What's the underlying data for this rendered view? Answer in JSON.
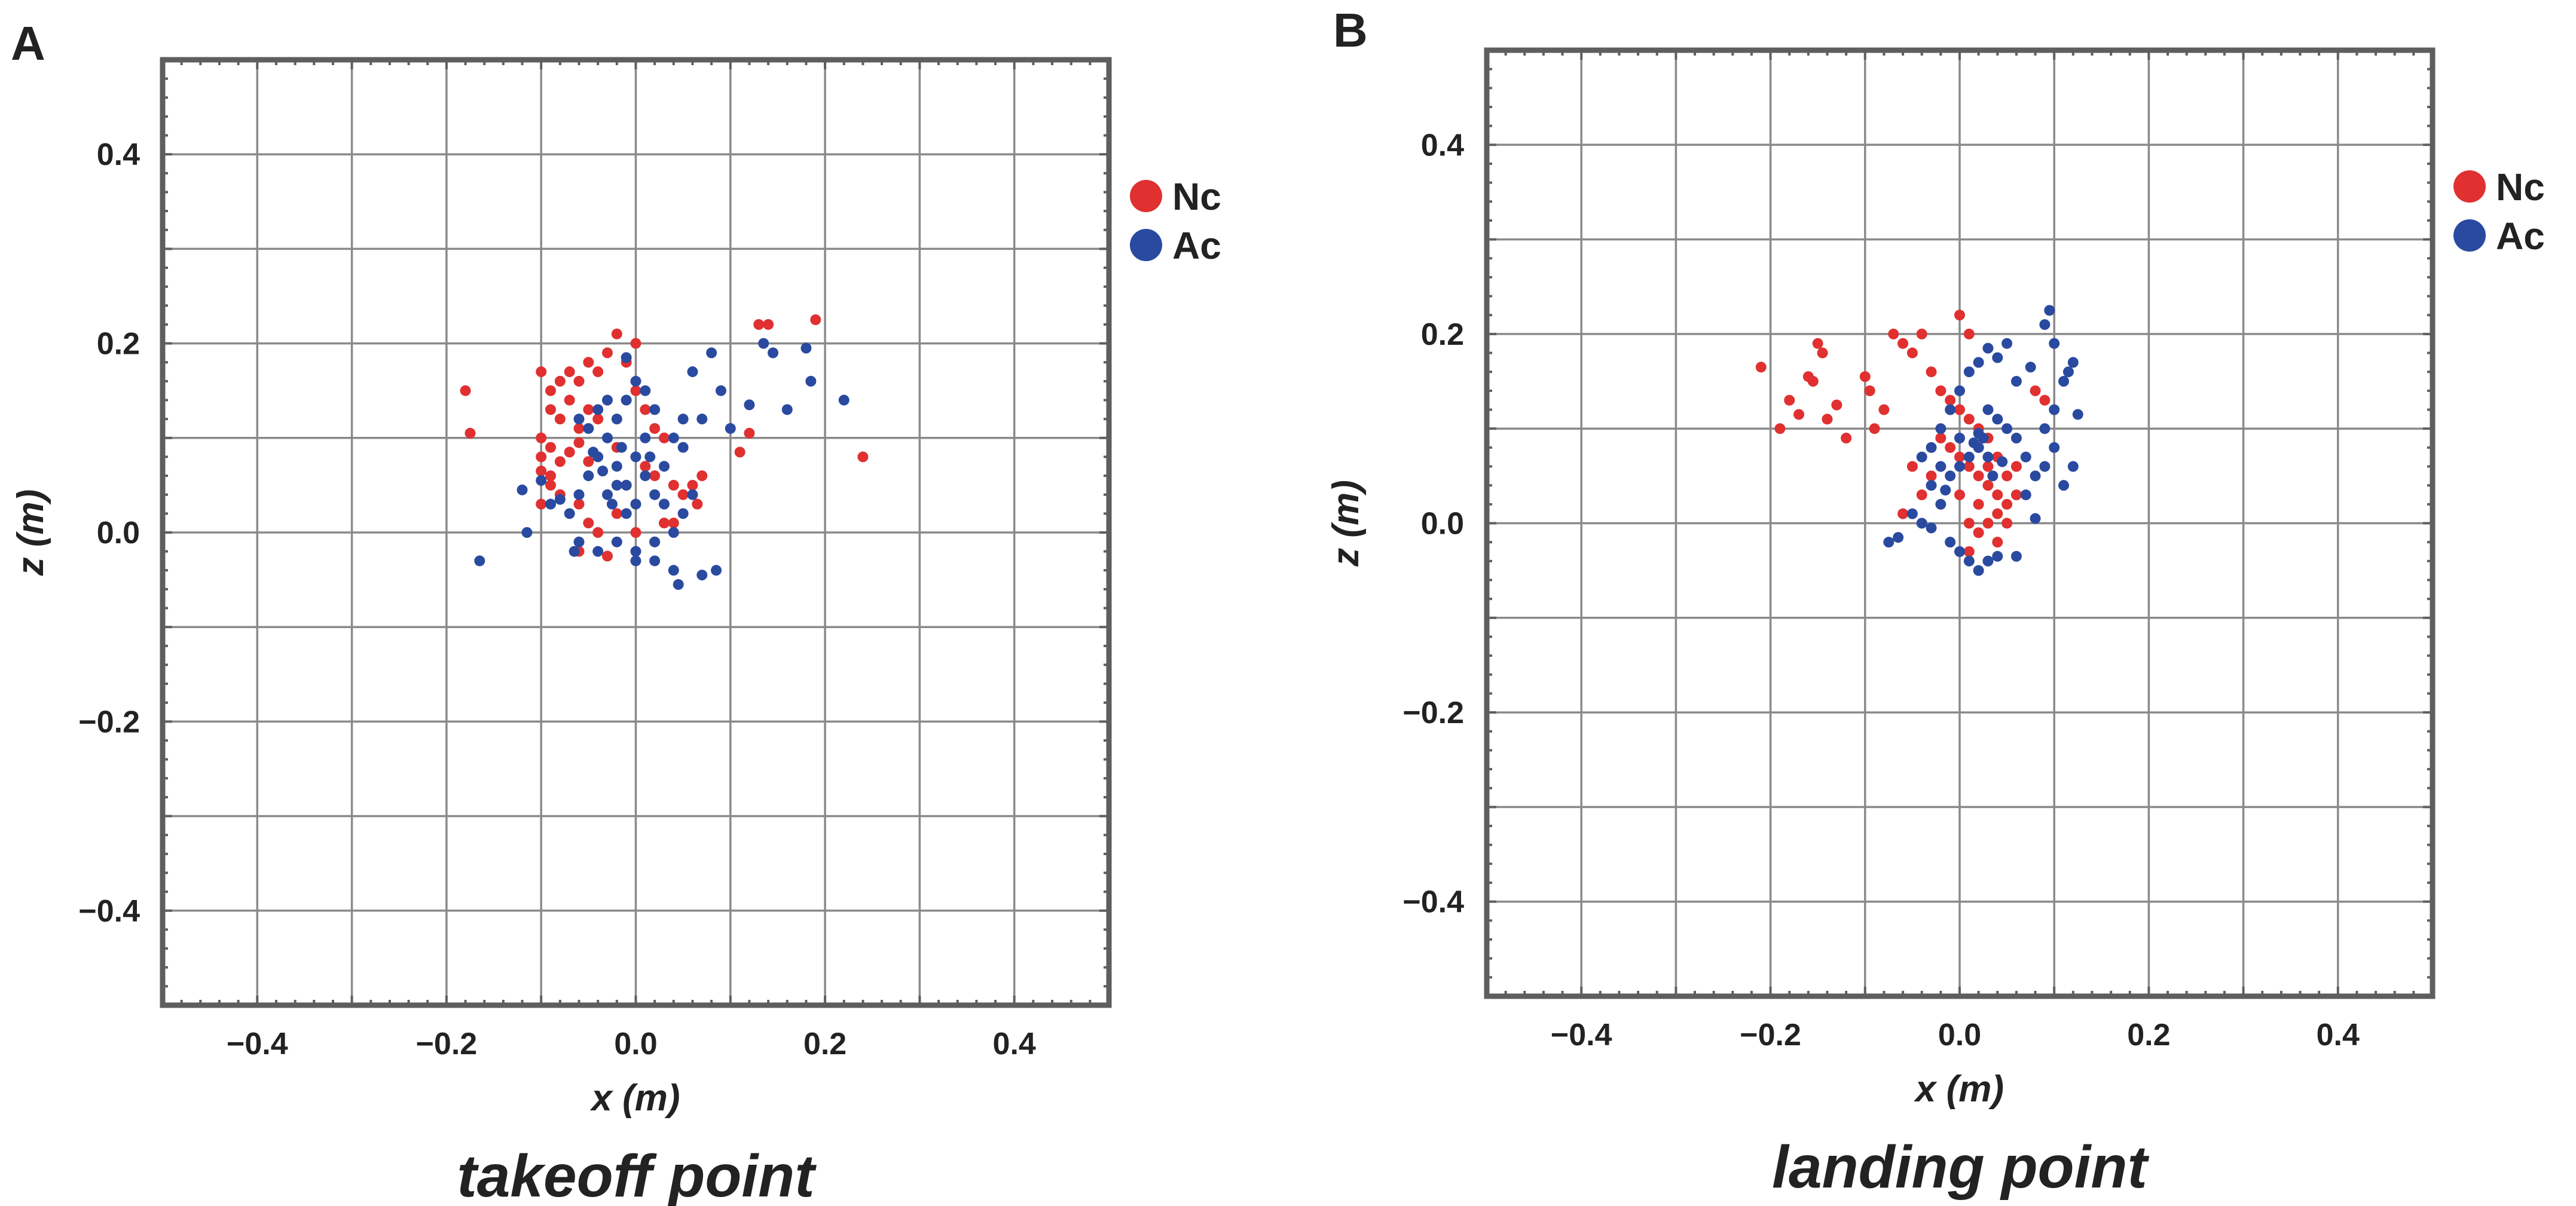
{
  "colors": {
    "Nc": "#e03030",
    "Ac": "#2a4aa0"
  },
  "chart_data": [
    {
      "panel_label": "A",
      "type": "scatter",
      "title": "takeoff point",
      "xlabel": "x (m)",
      "ylabel": "z (m)",
      "xlim": [
        -0.5,
        0.5
      ],
      "ylim": [
        -0.5,
        0.5
      ],
      "grid": true,
      "legend_position": "right",
      "xticks": [
        {
          "value": -0.4,
          "label": "−0.4"
        },
        {
          "value": -0.2,
          "label": "−0.2"
        },
        {
          "value": 0.0,
          "label": "0.0"
        },
        {
          "value": 0.2,
          "label": "0.2"
        },
        {
          "value": 0.4,
          "label": "0.4"
        }
      ],
      "yticks": [
        {
          "value": 0.4,
          "label": "0.4"
        },
        {
          "value": 0.2,
          "label": "0.2"
        },
        {
          "value": 0.0,
          "label": "0.0"
        },
        {
          "value": -0.2,
          "label": "−0.2"
        },
        {
          "value": -0.4,
          "label": "−0.4"
        }
      ],
      "series": [
        {
          "name": "Nc",
          "color": "#e03030",
          "points": [
            [
              -0.18,
              0.15
            ],
            [
              -0.175,
              0.105
            ],
            [
              -0.1,
              0.17
            ],
            [
              -0.09,
              0.15
            ],
            [
              -0.08,
              0.16
            ],
            [
              -0.07,
              0.17
            ],
            [
              -0.06,
              0.16
            ],
            [
              -0.05,
              0.18
            ],
            [
              -0.04,
              0.17
            ],
            [
              -0.03,
              0.19
            ],
            [
              -0.02,
              0.21
            ],
            [
              -0.01,
              0.18
            ],
            [
              0.0,
              0.2
            ],
            [
              -0.09,
              0.13
            ],
            [
              -0.08,
              0.12
            ],
            [
              -0.07,
              0.14
            ],
            [
              -0.06,
              0.11
            ],
            [
              -0.05,
              0.13
            ],
            [
              -0.04,
              0.12
            ],
            [
              -0.1,
              0.1
            ],
            [
              -0.09,
              0.09
            ],
            [
              -0.1,
              0.08
            ],
            [
              -0.1,
              0.065
            ],
            [
              -0.09,
              0.05
            ],
            [
              -0.08,
              0.075
            ],
            [
              -0.07,
              0.085
            ],
            [
              -0.06,
              0.095
            ],
            [
              -0.05,
              0.075
            ],
            [
              -0.08,
              0.04
            ],
            [
              -0.06,
              0.03
            ],
            [
              -0.05,
              0.01
            ],
            [
              -0.06,
              -0.02
            ],
            [
              -0.04,
              0.0
            ],
            [
              -0.03,
              -0.025
            ],
            [
              -0.02,
              0.02
            ],
            [
              0.0,
              0.0
            ],
            [
              0.01,
              0.07
            ],
            [
              0.02,
              0.06
            ],
            [
              0.03,
              0.1
            ],
            [
              0.04,
              0.05
            ],
            [
              0.05,
              0.04
            ],
            [
              0.06,
              0.05
            ],
            [
              0.07,
              0.06
            ],
            [
              0.065,
              0.03
            ],
            [
              0.03,
              0.01
            ],
            [
              0.04,
              0.01
            ],
            [
              0.01,
              0.13
            ],
            [
              0.02,
              0.11
            ],
            [
              0.0,
              0.15
            ],
            [
              -0.02,
              0.09
            ],
            [
              -0.01,
              0.05
            ],
            [
              -0.1,
              0.03
            ],
            [
              -0.09,
              0.06
            ],
            [
              0.02,
              -0.01
            ],
            [
              0.12,
              0.105
            ],
            [
              0.11,
              0.085
            ],
            [
              0.13,
              0.22
            ],
            [
              0.14,
              0.22
            ],
            [
              0.19,
              0.225
            ],
            [
              0.24,
              0.08
            ]
          ]
        },
        {
          "name": "Ac",
          "color": "#2a4aa0",
          "points": [
            [
              -0.165,
              -0.03
            ],
            [
              -0.12,
              0.045
            ],
            [
              -0.115,
              0.0
            ],
            [
              -0.1,
              0.055
            ],
            [
              -0.09,
              0.03
            ],
            [
              -0.08,
              0.035
            ],
            [
              -0.07,
              0.02
            ],
            [
              -0.06,
              0.04
            ],
            [
              -0.05,
              0.06
            ],
            [
              -0.04,
              0.08
            ],
            [
              -0.03,
              0.1
            ],
            [
              -0.02,
              0.12
            ],
            [
              -0.01,
              0.14
            ],
            [
              0.0,
              0.16
            ],
            [
              0.01,
              0.15
            ],
            [
              0.02,
              0.13
            ],
            [
              -0.05,
              0.11
            ],
            [
              -0.04,
              0.13
            ],
            [
              -0.03,
              0.14
            ],
            [
              -0.02,
              0.07
            ],
            [
              -0.01,
              0.05
            ],
            [
              0.0,
              0.03
            ],
            [
              -0.03,
              0.04
            ],
            [
              -0.02,
              0.05
            ],
            [
              -0.01,
              0.02
            ],
            [
              0.0,
              0.08
            ],
            [
              0.01,
              0.06
            ],
            [
              0.02,
              0.04
            ],
            [
              0.03,
              0.07
            ],
            [
              0.04,
              0.1
            ],
            [
              0.05,
              0.12
            ],
            [
              0.06,
              0.17
            ],
            [
              0.08,
              0.19
            ],
            [
              0.07,
              0.12
            ],
            [
              0.05,
              0.09
            ],
            [
              0.03,
              0.03
            ],
            [
              0.04,
              0.0
            ],
            [
              0.02,
              -0.01
            ],
            [
              0.0,
              -0.02
            ],
            [
              -0.02,
              -0.01
            ],
            [
              -0.04,
              -0.02
            ],
            [
              -0.06,
              -0.01
            ],
            [
              -0.065,
              -0.02
            ],
            [
              0.0,
              -0.03
            ],
            [
              0.02,
              -0.03
            ],
            [
              0.04,
              -0.04
            ],
            [
              0.045,
              -0.055
            ],
            [
              0.07,
              -0.045
            ],
            [
              0.085,
              -0.04
            ],
            [
              0.05,
              0.02
            ],
            [
              0.06,
              0.04
            ],
            [
              -0.01,
              0.185
            ],
            [
              0.09,
              0.15
            ],
            [
              0.1,
              0.11
            ],
            [
              0.12,
              0.135
            ],
            [
              0.135,
              0.2
            ],
            [
              0.145,
              0.19
            ],
            [
              0.16,
              0.13
            ],
            [
              0.18,
              0.195
            ],
            [
              0.185,
              0.16
            ],
            [
              0.22,
              0.14
            ],
            [
              -0.035,
              0.065
            ],
            [
              -0.045,
              0.085
            ],
            [
              -0.025,
              0.03
            ],
            [
              0.01,
              0.1
            ],
            [
              -0.06,
              0.12
            ],
            [
              0.015,
              0.08
            ],
            [
              -0.015,
              0.09
            ]
          ]
        }
      ]
    },
    {
      "panel_label": "B",
      "type": "scatter",
      "title": "landing point",
      "xlabel": "x (m)",
      "ylabel": "z (m)",
      "xlim": [
        -0.5,
        0.5
      ],
      "ylim": [
        -0.5,
        0.5
      ],
      "grid": true,
      "legend_position": "right",
      "xticks": [
        {
          "value": -0.4,
          "label": "−0.4"
        },
        {
          "value": -0.2,
          "label": "−0.2"
        },
        {
          "value": 0.0,
          "label": "0.0"
        },
        {
          "value": 0.2,
          "label": "0.2"
        },
        {
          "value": 0.4,
          "label": "0.4"
        }
      ],
      "yticks": [
        {
          "value": 0.4,
          "label": "0.4"
        },
        {
          "value": 0.2,
          "label": "0.2"
        },
        {
          "value": 0.0,
          "label": "0.0"
        },
        {
          "value": -0.2,
          "label": "−0.2"
        },
        {
          "value": -0.4,
          "label": "−0.4"
        }
      ],
      "series": [
        {
          "name": "Nc",
          "color": "#e03030",
          "points": [
            [
              -0.21,
              0.165
            ],
            [
              -0.19,
              0.1
            ],
            [
              -0.18,
              0.13
            ],
            [
              -0.17,
              0.115
            ],
            [
              -0.16,
              0.155
            ],
            [
              -0.155,
              0.15
            ],
            [
              -0.15,
              0.19
            ],
            [
              -0.145,
              0.18
            ],
            [
              -0.14,
              0.11
            ],
            [
              -0.13,
              0.125
            ],
            [
              -0.12,
              0.09
            ],
            [
              -0.1,
              0.155
            ],
            [
              -0.095,
              0.14
            ],
            [
              -0.09,
              0.1
            ],
            [
              -0.08,
              0.12
            ],
            [
              -0.07,
              0.2
            ],
            [
              -0.06,
              0.19
            ],
            [
              -0.05,
              0.18
            ],
            [
              -0.04,
              0.2
            ],
            [
              -0.03,
              0.16
            ],
            [
              -0.02,
              0.14
            ],
            [
              -0.01,
              0.13
            ],
            [
              0.0,
              0.12
            ],
            [
              0.01,
              0.11
            ],
            [
              0.02,
              0.1
            ],
            [
              0.03,
              0.09
            ],
            [
              0.0,
              0.22
            ],
            [
              0.01,
              0.2
            ],
            [
              -0.02,
              0.09
            ],
            [
              -0.01,
              0.08
            ],
            [
              0.0,
              0.07
            ],
            [
              0.01,
              0.06
            ],
            [
              0.02,
              0.05
            ],
            [
              0.03,
              0.04
            ],
            [
              0.04,
              0.03
            ],
            [
              0.05,
              0.02
            ],
            [
              0.03,
              0.0
            ],
            [
              0.02,
              -0.01
            ],
            [
              0.04,
              -0.02
            ],
            [
              0.01,
              -0.03
            ],
            [
              0.03,
              -0.04
            ],
            [
              0.05,
              0.05
            ],
            [
              0.06,
              0.06
            ],
            [
              -0.03,
              0.05
            ],
            [
              -0.05,
              0.06
            ],
            [
              -0.06,
              0.01
            ],
            [
              0.0,
              0.03
            ],
            [
              0.02,
              0.02
            ],
            [
              0.04,
              0.01
            ],
            [
              0.01,
              0.0
            ],
            [
              0.06,
              0.03
            ],
            [
              0.05,
              0.0
            ],
            [
              -0.04,
              0.03
            ],
            [
              0.03,
              0.06
            ],
            [
              0.02,
              0.08
            ],
            [
              0.04,
              0.07
            ],
            [
              0.08,
              0.14
            ],
            [
              0.09,
              0.13
            ]
          ]
        },
        {
          "name": "Ac",
          "color": "#2a4aa0",
          "points": [
            [
              -0.075,
              -0.02
            ],
            [
              -0.065,
              -0.015
            ],
            [
              -0.05,
              0.01
            ],
            [
              -0.04,
              0.0
            ],
            [
              -0.03,
              -0.005
            ],
            [
              -0.02,
              0.02
            ],
            [
              -0.01,
              -0.02
            ],
            [
              0.0,
              -0.03
            ],
            [
              0.01,
              -0.04
            ],
            [
              0.02,
              -0.05
            ],
            [
              0.03,
              -0.04
            ],
            [
              0.04,
              -0.035
            ],
            [
              0.06,
              -0.035
            ],
            [
              0.08,
              0.005
            ],
            [
              0.09,
              0.06
            ],
            [
              0.1,
              0.08
            ],
            [
              0.09,
              0.1
            ],
            [
              0.1,
              0.12
            ],
            [
              0.11,
              0.15
            ],
            [
              0.12,
              0.17
            ],
            [
              0.115,
              0.16
            ],
            [
              0.1,
              0.19
            ],
            [
              0.09,
              0.21
            ],
            [
              0.095,
              0.225
            ],
            [
              0.12,
              0.06
            ],
            [
              0.11,
              0.04
            ],
            [
              0.08,
              0.05
            ],
            [
              0.07,
              0.07
            ],
            [
              0.06,
              0.09
            ],
            [
              0.05,
              0.1
            ],
            [
              0.04,
              0.11
            ],
            [
              0.03,
              0.12
            ],
            [
              0.02,
              0.08
            ],
            [
              0.01,
              0.07
            ],
            [
              0.0,
              0.06
            ],
            [
              -0.01,
              0.05
            ],
            [
              -0.02,
              0.06
            ],
            [
              -0.03,
              0.08
            ],
            [
              -0.02,
              0.1
            ],
            [
              -0.01,
              0.12
            ],
            [
              0.0,
              0.14
            ],
            [
              0.01,
              0.16
            ],
            [
              0.02,
              0.17
            ],
            [
              0.03,
              0.185
            ],
            [
              0.04,
              0.175
            ],
            [
              0.05,
              0.19
            ],
            [
              0.06,
              0.15
            ],
            [
              -0.03,
              0.04
            ],
            [
              -0.04,
              0.07
            ],
            [
              0.0,
              0.09
            ],
            [
              0.02,
              0.095
            ],
            [
              0.03,
              0.07
            ],
            [
              0.025,
              0.09
            ],
            [
              0.015,
              0.085
            ],
            [
              0.035,
              0.05
            ],
            [
              0.045,
              0.065
            ],
            [
              -0.015,
              0.035
            ],
            [
              0.07,
              0.03
            ],
            [
              0.125,
              0.115
            ],
            [
              0.075,
              0.165
            ]
          ]
        }
      ]
    }
  ]
}
